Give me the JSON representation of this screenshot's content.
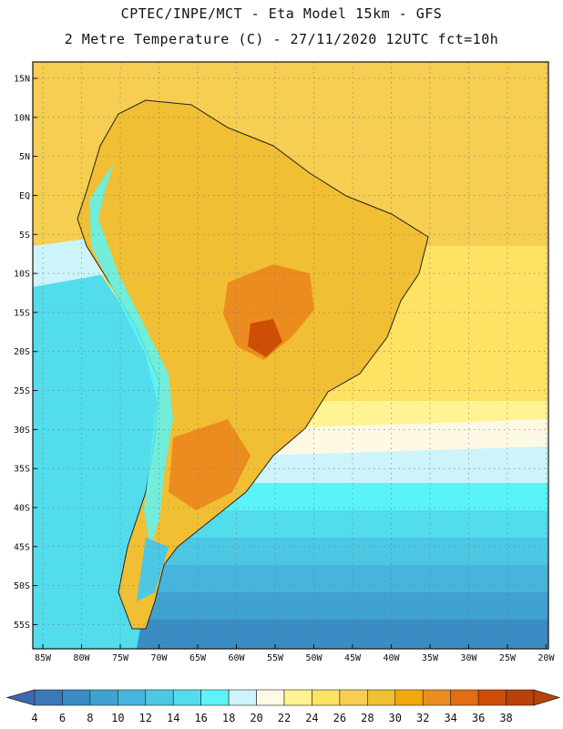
{
  "header": {
    "line1": "CPTEC/INPE/MCT -  Eta Model 15km - GFS",
    "line2": "2 Metre Temperature (C) - 27/11/2020 12UTC fct=10h"
  },
  "map": {
    "lat_labels": [
      "15N",
      "10N",
      "5N",
      "EQ",
      "5S",
      "10S",
      "15S",
      "20S",
      "25S",
      "30S",
      "35S",
      "40S",
      "45S",
      "50S",
      "55S"
    ],
    "lon_labels": [
      "85W",
      "80W",
      "75W",
      "70W",
      "65W",
      "60W",
      "55W",
      "50W",
      "45W",
      "40W",
      "35W",
      "30W",
      "25W",
      "20W"
    ]
  },
  "colorbar": {
    "labels": [
      "4",
      "6",
      "8",
      "10",
      "12",
      "14",
      "16",
      "18",
      "20",
      "22",
      "24",
      "26",
      "28",
      "30",
      "32",
      "34",
      "36",
      "38"
    ],
    "colors": [
      "#3a78b8",
      "#3a8cc4",
      "#3fa2d0",
      "#46b4dc",
      "#4cc8e4",
      "#52dcec",
      "#5af4f8",
      "#ccf4fa",
      "#fef9e4",
      "#fff393",
      "#fde263",
      "#f5ce52",
      "#f0bf33",
      "#f2a90e",
      "#ec8c1e",
      "#e36d10",
      "#cf4e05",
      "#b8410c"
    ],
    "low_color": "#3f6ab0",
    "high_color": "#b8410c"
  },
  "colors": {
    "ocean_tropical": "#f5ce52",
    "ocean_mid": "#fde263",
    "land_warm": "#f0bf33",
    "land_hot": "#ec8c1e",
    "andes_cold": "#5af4f8"
  }
}
